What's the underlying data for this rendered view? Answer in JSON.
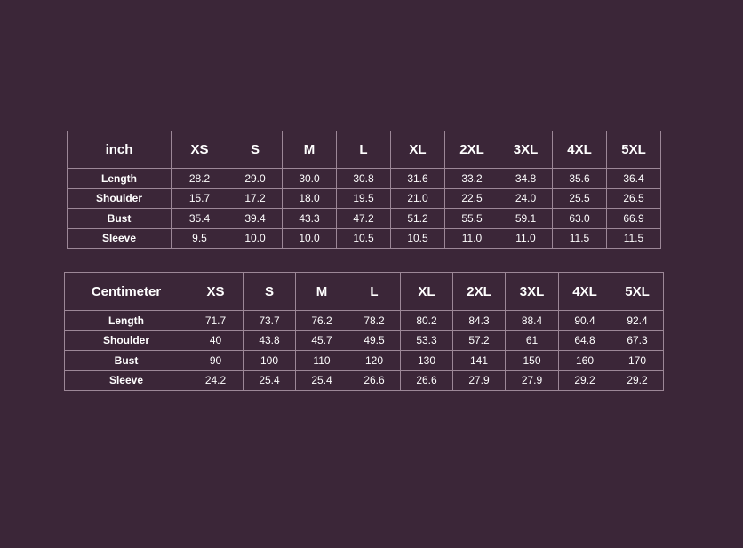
{
  "tables": [
    {
      "header": [
        "inch",
        "XS",
        "S",
        "M",
        "L",
        "XL",
        "2XL",
        "3XL",
        "4XL",
        "5XL"
      ],
      "rows": [
        [
          "Length",
          "28.2",
          "29.0",
          "30.0",
          "30.8",
          "31.6",
          "33.2",
          "34.8",
          "35.6",
          "36.4"
        ],
        [
          "Shoulder",
          "15.7",
          "17.2",
          "18.0",
          "19.5",
          "21.0",
          "22.5",
          "24.0",
          "25.5",
          "26.5"
        ],
        [
          "Bust",
          "35.4",
          "39.4",
          "43.3",
          "47.2",
          "51.2",
          "55.5",
          "59.1",
          "63.0",
          "66.9"
        ],
        [
          "Sleeve",
          "9.5",
          "10.0",
          "10.0",
          "10.5",
          "10.5",
          "11.0",
          "11.0",
          "11.5",
          "11.5"
        ]
      ]
    },
    {
      "header": [
        "Centimeter",
        "XS",
        "S",
        "M",
        "L",
        "XL",
        "2XL",
        "3XL",
        "4XL",
        "5XL"
      ],
      "rows": [
        [
          "Length",
          "71.7",
          "73.7",
          "76.2",
          "78.2",
          "80.2",
          "84.3",
          "88.4",
          "90.4",
          "92.4"
        ],
        [
          "Shoulder",
          "40",
          "43.8",
          "45.7",
          "49.5",
          "53.3",
          "57.2",
          "61",
          "64.8",
          "67.3"
        ],
        [
          "Bust",
          "90",
          "100",
          "110",
          "120",
          "130",
          "141",
          "150",
          "160",
          "170"
        ],
        [
          "Sleeve",
          "24.2",
          "25.4",
          "25.4",
          "26.6",
          "26.6",
          "27.9",
          "27.9",
          "29.2",
          "29.2"
        ]
      ]
    }
  ]
}
